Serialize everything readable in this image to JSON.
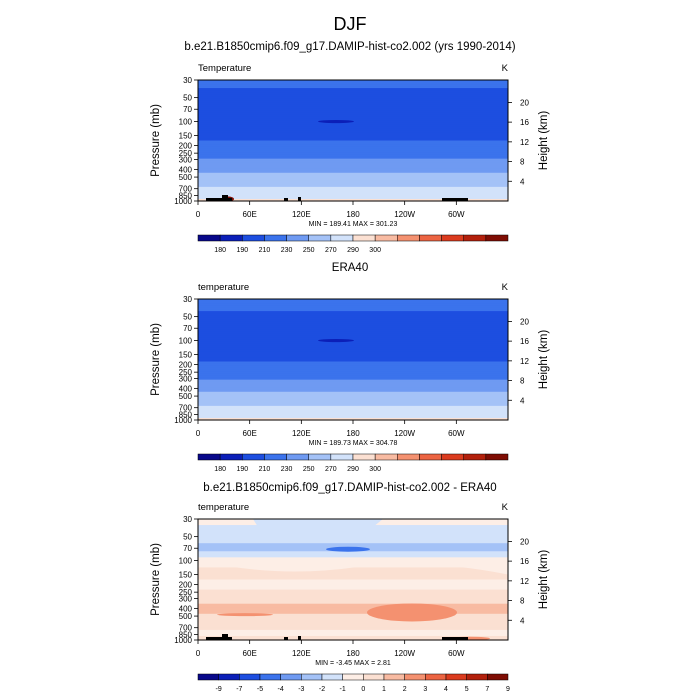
{
  "figure_title": "DJF",
  "chart_data": [
    {
      "type": "heatmap",
      "title": "b.e21.B1850cmip6.f09_g17.DAMIP-hist-co2.002 (yrs 1990-2014)",
      "variable": "Temperature",
      "units": "K",
      "xlabel": "",
      "ylabel": "Pressure (mb)",
      "ylabel_right": "Height (km)",
      "x_ticks": [
        "0",
        "60E",
        "120E",
        "180",
        "120W",
        "60W"
      ],
      "y_ticks": [
        30,
        50,
        70,
        100,
        150,
        200,
        250,
        300,
        400,
        500,
        700,
        850,
        1000
      ],
      "y_ticks_right": [
        20,
        16,
        12,
        8,
        4
      ],
      "ylim": [
        1000,
        30
      ],
      "stats": "MIN = 189.41  MAX = 301.23",
      "min": 189.41,
      "max": 301.23,
      "levels": [
        180,
        190,
        210,
        230,
        250,
        270,
        290,
        300
      ],
      "colorbar_labels": [
        "180",
        "190",
        "210",
        "230",
        "250",
        "270",
        "290",
        "300"
      ],
      "profile": [
        {
          "p": 30,
          "value": 213
        },
        {
          "p": 50,
          "value": 207
        },
        {
          "p": 70,
          "value": 203
        },
        {
          "p": 100,
          "value": 197
        },
        {
          "p": 150,
          "value": 206
        },
        {
          "p": 200,
          "value": 214
        },
        {
          "p": 250,
          "value": 222
        },
        {
          "p": 300,
          "value": 230
        },
        {
          "p": 400,
          "value": 245
        },
        {
          "p": 500,
          "value": 256
        },
        {
          "p": 700,
          "value": 272
        },
        {
          "p": 850,
          "value": 283
        },
        {
          "p": 1000,
          "value": 292
        }
      ]
    },
    {
      "type": "heatmap",
      "title": "ERA40",
      "variable": "temperature",
      "units": "K",
      "xlabel": "",
      "ylabel": "Pressure (mb)",
      "ylabel_right": "Height (km)",
      "x_ticks": [
        "0",
        "60E",
        "120E",
        "180",
        "120W",
        "60W"
      ],
      "y_ticks": [
        30,
        50,
        70,
        100,
        150,
        200,
        250,
        300,
        400,
        500,
        700,
        850,
        1000
      ],
      "y_ticks_right": [
        20,
        16,
        12,
        8,
        4
      ],
      "ylim": [
        1000,
        30
      ],
      "stats": "MIN = 189.73  MAX = 304.78",
      "min": 189.73,
      "max": 304.78,
      "levels": [
        180,
        190,
        210,
        230,
        250,
        270,
        290,
        300
      ],
      "colorbar_labels": [
        "180",
        "190",
        "210",
        "230",
        "250",
        "270",
        "290",
        "300"
      ],
      "profile": [
        {
          "p": 30,
          "value": 214
        },
        {
          "p": 50,
          "value": 208
        },
        {
          "p": 70,
          "value": 203
        },
        {
          "p": 100,
          "value": 196
        },
        {
          "p": 150,
          "value": 205
        },
        {
          "p": 200,
          "value": 213
        },
        {
          "p": 250,
          "value": 221
        },
        {
          "p": 300,
          "value": 229
        },
        {
          "p": 400,
          "value": 244
        },
        {
          "p": 500,
          "value": 256
        },
        {
          "p": 700,
          "value": 272
        },
        {
          "p": 850,
          "value": 284
        },
        {
          "p": 1000,
          "value": 294
        }
      ]
    },
    {
      "type": "heatmap",
      "title": "b.e21.B1850cmip6.f09_g17.DAMIP-hist-co2.002 - ERA40",
      "variable": "temperature",
      "units": "K",
      "xlabel": "",
      "ylabel": "Pressure (mb)",
      "ylabel_right": "Height (km)",
      "x_ticks": [
        "0",
        "60E",
        "120E",
        "180",
        "120W",
        "60W"
      ],
      "y_ticks": [
        30,
        50,
        70,
        100,
        150,
        200,
        250,
        300,
        400,
        500,
        700,
        850,
        1000
      ],
      "y_ticks_right": [
        20,
        16,
        12,
        8,
        4
      ],
      "ylim": [
        1000,
        30
      ],
      "stats": "MIN = -3.45  MAX = 2.81",
      "min": -3.45,
      "max": 2.81,
      "levels": [
        -9,
        -7,
        -5,
        -4,
        -3,
        -2,
        -1,
        0,
        1,
        2,
        3,
        4,
        5,
        7,
        9
      ],
      "colorbar_labels": [
        "-9",
        "-7",
        "-5",
        "-4",
        "-3",
        "-2",
        "-1",
        "0",
        "1",
        "2",
        "3",
        "4",
        "5",
        "7",
        "9"
      ],
      "profile": [
        {
          "p": 30,
          "value": -0.8
        },
        {
          "p": 50,
          "value": -1.4
        },
        {
          "p": 70,
          "value": -2.4
        },
        {
          "p": 100,
          "value": -0.6
        },
        {
          "p": 150,
          "value": 0.5
        },
        {
          "p": 200,
          "value": -0.5
        },
        {
          "p": 250,
          "value": 0.3
        },
        {
          "p": 300,
          "value": 0.6
        },
        {
          "p": 400,
          "value": 1.3
        },
        {
          "p": 500,
          "value": 0.8
        },
        {
          "p": 700,
          "value": 0.3
        },
        {
          "p": 850,
          "value": -0.4
        },
        {
          "p": 1000,
          "value": 0.5
        }
      ]
    }
  ],
  "colors": {
    "abs_palette": [
      "#08088a",
      "#0b1fb8",
      "#1d4ee0",
      "#3b73ec",
      "#6f9af2",
      "#a4c2f7",
      "#d2e2fa",
      "#fbe0d2",
      "#f8bba2",
      "#f49170",
      "#ec6442",
      "#db3b1e",
      "#b3200c",
      "#7f0d04"
    ],
    "diff_palette": [
      "#08088a",
      "#0b1fb8",
      "#1d4ee0",
      "#3b73ec",
      "#6f9af2",
      "#a4c2f7",
      "#d2e2fa",
      "#fdeee6",
      "#fbe0d2",
      "#f8bba2",
      "#f49170",
      "#ec6442",
      "#db3b1e",
      "#b3200c",
      "#7f0d04"
    ],
    "topography": "#000000"
  }
}
